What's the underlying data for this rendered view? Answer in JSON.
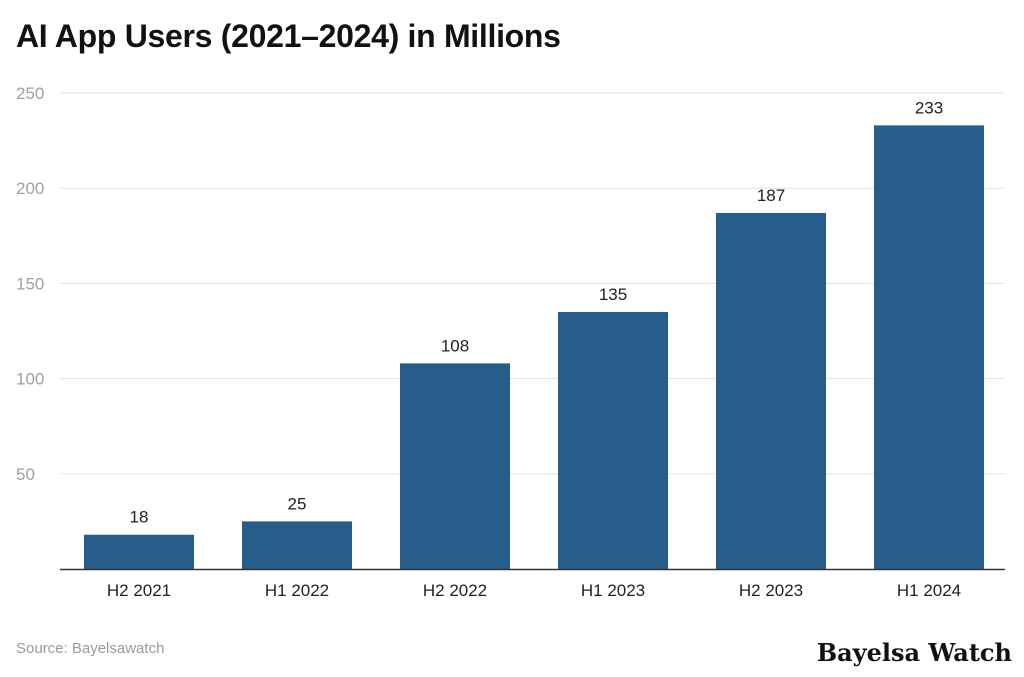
{
  "chart_data": {
    "type": "bar",
    "title": "AI App Users (2021–2024) in Millions",
    "categories": [
      "H2 2021",
      "H1 2022",
      "H2 2022",
      "H1 2023",
      "H2 2023",
      "H1 2024"
    ],
    "values": [
      18,
      25,
      108,
      135,
      187,
      233
    ],
    "ylim": [
      0,
      250
    ],
    "yticks": [
      50,
      100,
      150,
      200,
      250
    ],
    "grid": true,
    "bar_color": "#275d8b",
    "xlabel": "",
    "ylabel": ""
  },
  "source": "Source: Bayelsawatch",
  "logo": "Bayelsa Watch"
}
